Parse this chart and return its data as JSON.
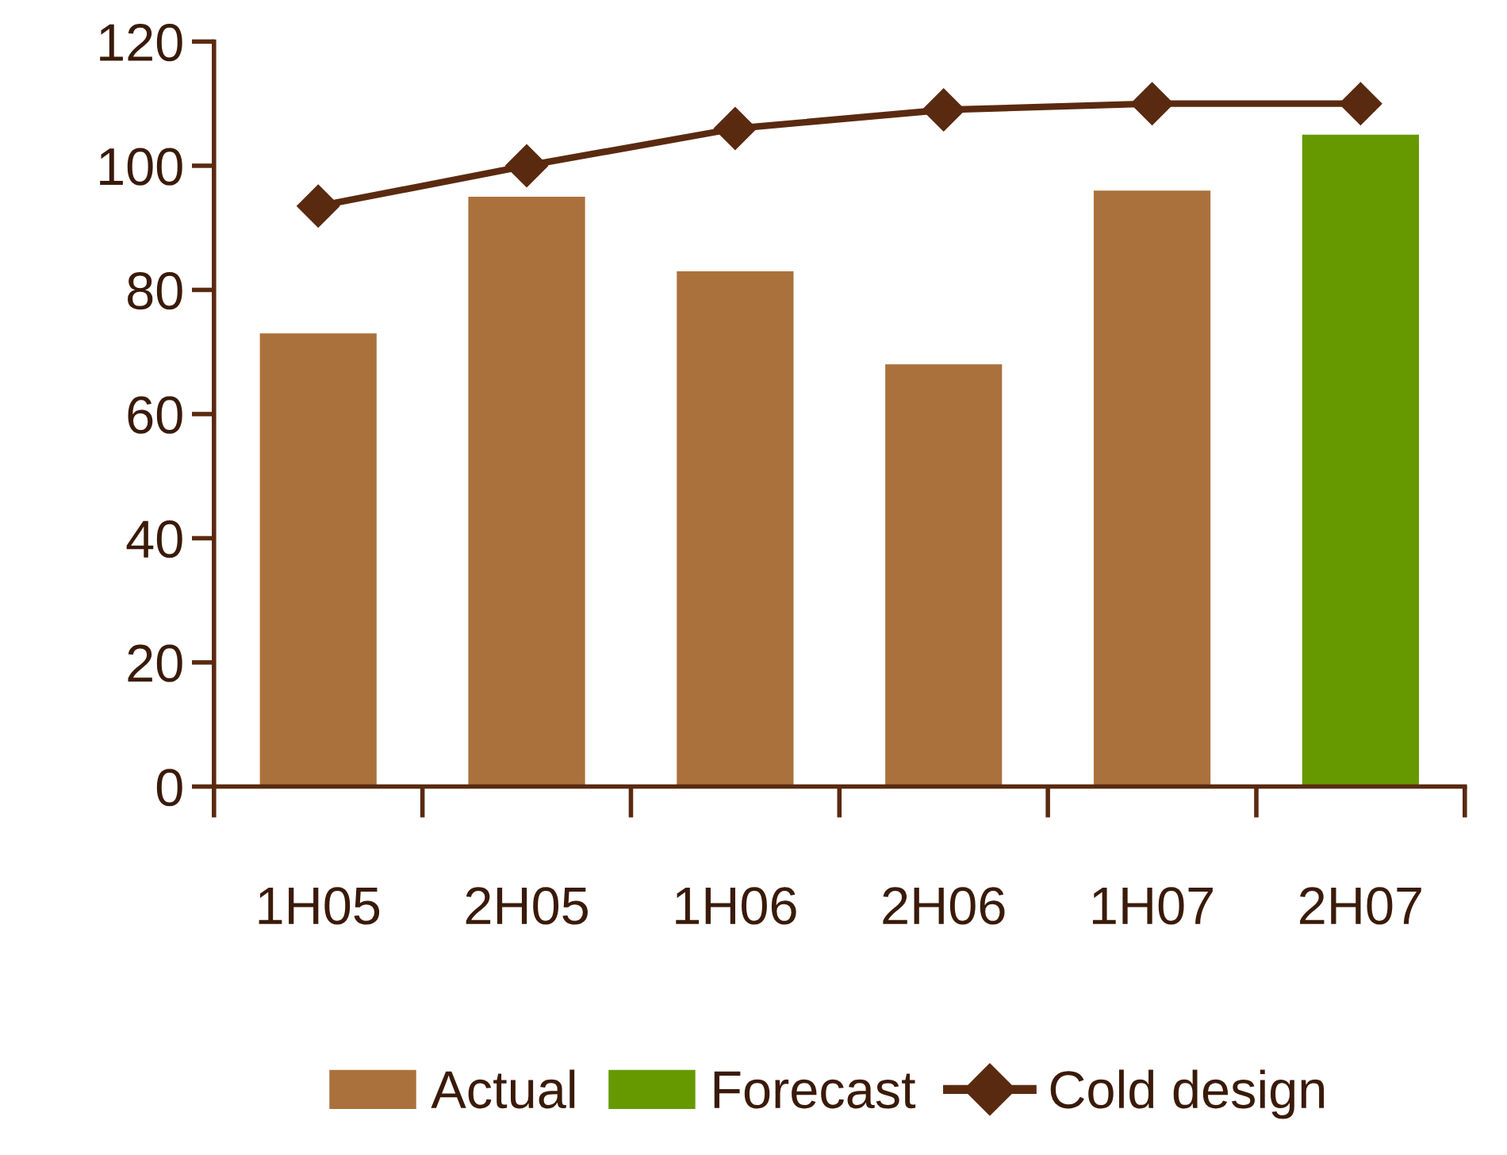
{
  "chart_data": {
    "type": "bar",
    "categories": [
      "1H05",
      "2H05",
      "1H06",
      "2H06",
      "1H07",
      "2H07"
    ],
    "series": [
      {
        "name": "Actual",
        "color": "#ab713c",
        "values": [
          73,
          95,
          83,
          68,
          96,
          null
        ]
      },
      {
        "name": "Forecast",
        "color": "#669900",
        "values": [
          null,
          null,
          null,
          null,
          null,
          105
        ]
      },
      {
        "name": "Cold design",
        "type": "line",
        "color": "#5a2a10",
        "marker": "diamond",
        "values": [
          93.5,
          100,
          106,
          109,
          110,
          110
        ]
      }
    ],
    "ylim": [
      0,
      120
    ],
    "yticks": [
      0,
      20,
      40,
      60,
      80,
      100,
      120
    ],
    "grid": false,
    "legend": "bottom"
  }
}
